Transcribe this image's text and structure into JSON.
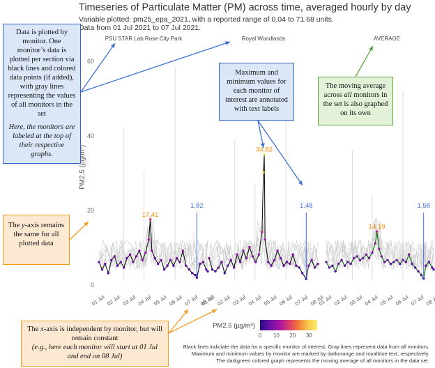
{
  "title": "Timeseries of Particulate Matter (PM) across time, averaged hourly by day",
  "subtitle_1": "Variable plotted: pm25_epa_2021, with a reported range of 0.04 to 71.68 units.",
  "subtitle_2": "Data from 01 Jul 2021 to 07 Jul 2021.",
  "footer": [
    "Black lines indiciate the data for a specific monitor of interest. Gray lines represent data from all monitors.",
    "Maximum and minimum values by monitor are marked by darkorange and royalblue text, respectively.",
    "The darkgreen colored graph represents the moving average of all monitors in the data set."
  ],
  "annotations": {
    "monitors_main": "Data is plotted by monitor. One monitor’s data is plotted per section via black lines and colored data points (if added), with gray lines representing the values of all monitors in the set",
    "monitors_italic": "Here, the monitors are labeled at the top of their respective graphs.",
    "max_min": "Maximum and minimum values for each monitor of interest are annotated with text labels",
    "average_pre": "The moving average across ",
    "average_em": "all",
    "average_post": " monitors in the set is also graphed on its own",
    "yaxis_pre": "The ",
    "yaxis_em": "y",
    "yaxis_post": "-axis remains the same for all plotted data",
    "xaxis_pre": "The ",
    "xaxis_em": "x",
    "xaxis_post": "-axis is independent by monitor, but will remain constant",
    "xaxis_italic": "(e.g., here each monitor will start at 01 Jul and end on 08 Jul)"
  },
  "colors": {
    "monitor_line": "#111111",
    "all_monitors": "#c8c8c8",
    "max_label": "#ff8c00",
    "min_label": "#4169e1",
    "average": "#006400",
    "points_low": "#3a0a9e",
    "points_high": "#f5e64a",
    "arrow": "#3d6fd1",
    "arrow_green": "#5aa845",
    "arrow_orange": "#f29d1f"
  },
  "chart_data": {
    "type": "line",
    "ylabel": "PM2.5 (µg/m³)",
    "ylim": [
      0,
      65
    ],
    "yticks": [
      0,
      20,
      40,
      60
    ],
    "grid": false,
    "xticks": [
      "01 Jul",
      "02 Jul",
      "03 Jul",
      "04 Jul",
      "05 Jul",
      "06 Jul",
      "07 Jul",
      "08 Jul"
    ],
    "colorbar": {
      "label": "PM2.5 (µg/m³)",
      "ticks": [
        0,
        10,
        20,
        30
      ],
      "range": [
        0,
        35
      ]
    },
    "panels": [
      {
        "name": "PSU STAR Lab Rose City Park",
        "max": {
          "label": "17.41",
          "value": 17.41,
          "x": 3.3
        },
        "min": {
          "label": "1.82",
          "value": 1.82,
          "x": 6.3
        },
        "series": [
          {
            "x": 0.0,
            "y": 6.0
          },
          {
            "x": 0.2,
            "y": 4.0
          },
          {
            "x": 0.4,
            "y": 5.5
          },
          {
            "x": 0.6,
            "y": 3.0
          },
          {
            "x": 0.8,
            "y": 6.5
          },
          {
            "x": 1.0,
            "y": 7.5
          },
          {
            "x": 1.2,
            "y": 5.0
          },
          {
            "x": 1.4,
            "y": 6.0
          },
          {
            "x": 1.6,
            "y": 4.5
          },
          {
            "x": 1.8,
            "y": 7.0
          },
          {
            "x": 2.0,
            "y": 8.0
          },
          {
            "x": 2.2,
            "y": 6.0
          },
          {
            "x": 2.4,
            "y": 7.5
          },
          {
            "x": 2.6,
            "y": 9.0
          },
          {
            "x": 2.8,
            "y": 6.5
          },
          {
            "x": 3.0,
            "y": 8.5
          },
          {
            "x": 3.2,
            "y": 12.0
          },
          {
            "x": 3.3,
            "y": 17.41
          },
          {
            "x": 3.4,
            "y": 9.0
          },
          {
            "x": 3.6,
            "y": 7.0
          },
          {
            "x": 3.8,
            "y": 5.5
          },
          {
            "x": 4.0,
            "y": 6.5
          },
          {
            "x": 4.2,
            "y": 4.0
          },
          {
            "x": 4.4,
            "y": 5.0
          },
          {
            "x": 4.6,
            "y": 6.5
          },
          {
            "x": 4.8,
            "y": 5.0
          },
          {
            "x": 5.0,
            "y": 7.0
          },
          {
            "x": 5.2,
            "y": 6.0
          },
          {
            "x": 5.4,
            "y": 9.0
          },
          {
            "x": 5.6,
            "y": 5.0
          },
          {
            "x": 5.8,
            "y": 4.0
          },
          {
            "x": 6.0,
            "y": 3.0
          },
          {
            "x": 6.2,
            "y": 2.5
          },
          {
            "x": 6.3,
            "y": 1.82
          },
          {
            "x": 6.5,
            "y": 5.5
          },
          {
            "x": 6.7,
            "y": 6.0
          },
          {
            "x": 6.9,
            "y": 4.0
          },
          {
            "x": 7.0,
            "y": 3.5
          }
        ]
      },
      {
        "name": "Royal Woodlands",
        "max": {
          "label": "34.82",
          "value": 34.82,
          "x": 3.55
        },
        "min": {
          "label": "1.48",
          "value": 1.48,
          "x": 6.25
        },
        "series": [
          {
            "x": 0.0,
            "y": 7.0
          },
          {
            "x": 0.2,
            "y": 4.0
          },
          {
            "x": 0.4,
            "y": 3.5
          },
          {
            "x": 0.6,
            "y": 4.5
          },
          {
            "x": 0.8,
            "y": 6.0
          },
          {
            "x": 1.0,
            "y": 3.0
          },
          {
            "x": 1.2,
            "y": 5.0
          },
          {
            "x": 1.4,
            "y": 6.5
          },
          {
            "x": 1.6,
            "y": 4.5
          },
          {
            "x": 1.8,
            "y": 8.0
          },
          {
            "x": 2.0,
            "y": 6.0
          },
          {
            "x": 2.2,
            "y": 9.0
          },
          {
            "x": 2.4,
            "y": 7.0
          },
          {
            "x": 2.6,
            "y": 10.0
          },
          {
            "x": 2.8,
            "y": 7.5
          },
          {
            "x": 3.0,
            "y": 6.0
          },
          {
            "x": 3.2,
            "y": 8.0
          },
          {
            "x": 3.4,
            "y": 14.0
          },
          {
            "x": 3.5,
            "y": 30.0
          },
          {
            "x": 3.55,
            "y": 34.82
          },
          {
            "x": 3.6,
            "y": 12.0
          },
          {
            "x": 3.8,
            "y": 6.0
          },
          {
            "x": 4.0,
            "y": 5.0
          },
          {
            "x": 4.2,
            "y": 6.5
          },
          {
            "x": 4.4,
            "y": 9.0
          },
          {
            "x": 4.6,
            "y": 7.0
          },
          {
            "x": 4.8,
            "y": 5.0
          },
          {
            "x": 5.0,
            "y": 6.0
          },
          {
            "x": 5.2,
            "y": 5.5
          },
          {
            "x": 5.4,
            "y": 8.0
          },
          {
            "x": 5.6,
            "y": 5.0
          },
          {
            "x": 5.8,
            "y": 4.5
          },
          {
            "x": 6.0,
            "y": 3.0
          },
          {
            "x": 6.25,
            "y": 1.48
          },
          {
            "x": 6.4,
            "y": 5.0
          },
          {
            "x": 6.6,
            "y": 6.5
          },
          {
            "x": 6.8,
            "y": 4.5
          },
          {
            "x": 7.0,
            "y": 5.5
          }
        ]
      },
      {
        "name": "AVERAGE",
        "max": {
          "label": "14.19",
          "value": 14.19,
          "x": 3.3
        },
        "min": {
          "label": "1.58",
          "value": 1.58,
          "x": 6.35
        },
        "series": [
          {
            "x": 0.0,
            "y": 6.0
          },
          {
            "x": 0.2,
            "y": 4.5
          },
          {
            "x": 0.4,
            "y": 5.0
          },
          {
            "x": 0.6,
            "y": 3.5
          },
          {
            "x": 0.8,
            "y": 5.5
          },
          {
            "x": 1.0,
            "y": 6.5
          },
          {
            "x": 1.2,
            "y": 5.0
          },
          {
            "x": 1.4,
            "y": 6.0
          },
          {
            "x": 1.6,
            "y": 5.5
          },
          {
            "x": 1.8,
            "y": 7.0
          },
          {
            "x": 2.0,
            "y": 7.5
          },
          {
            "x": 2.2,
            "y": 6.5
          },
          {
            "x": 2.4,
            "y": 7.0
          },
          {
            "x": 2.6,
            "y": 8.0
          },
          {
            "x": 2.8,
            "y": 7.0
          },
          {
            "x": 3.0,
            "y": 8.5
          },
          {
            "x": 3.2,
            "y": 11.0
          },
          {
            "x": 3.3,
            "y": 14.19
          },
          {
            "x": 3.45,
            "y": 9.5
          },
          {
            "x": 3.6,
            "y": 7.5
          },
          {
            "x": 3.8,
            "y": 6.0
          },
          {
            "x": 4.0,
            "y": 6.5
          },
          {
            "x": 4.2,
            "y": 5.5
          },
          {
            "x": 4.4,
            "y": 6.0
          },
          {
            "x": 4.6,
            "y": 6.5
          },
          {
            "x": 4.8,
            "y": 5.5
          },
          {
            "x": 5.0,
            "y": 6.5
          },
          {
            "x": 5.2,
            "y": 6.0
          },
          {
            "x": 5.4,
            "y": 8.0
          },
          {
            "x": 5.6,
            "y": 5.5
          },
          {
            "x": 5.8,
            "y": 4.5
          },
          {
            "x": 6.0,
            "y": 3.5
          },
          {
            "x": 6.2,
            "y": 2.5
          },
          {
            "x": 6.35,
            "y": 1.58
          },
          {
            "x": 6.5,
            "y": 5.0
          },
          {
            "x": 6.7,
            "y": 6.0
          },
          {
            "x": 6.9,
            "y": 4.5
          },
          {
            "x": 7.0,
            "y": 4.0
          }
        ]
      }
    ]
  }
}
